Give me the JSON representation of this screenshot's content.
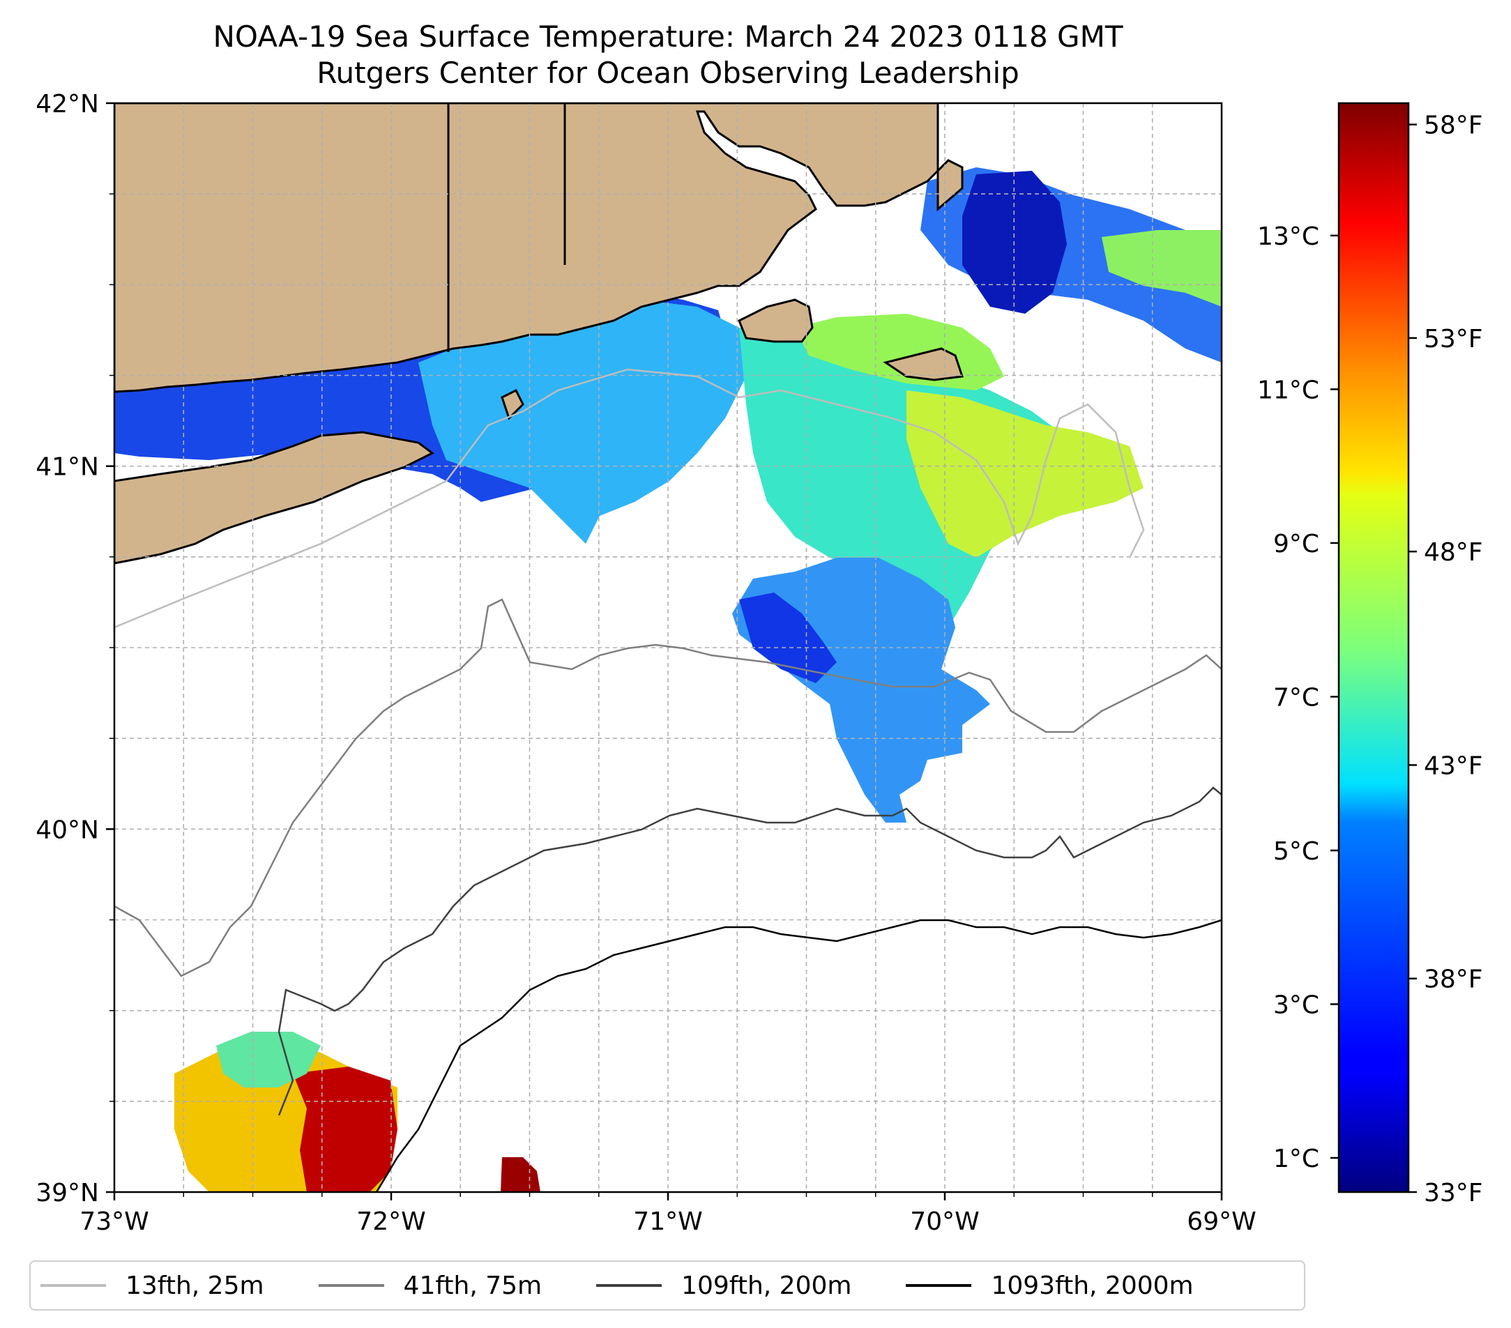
{
  "title": {
    "line1": "NOAA-19 Sea Surface Temperature: March 24 2023 0118 GMT",
    "line2": "Rutgers Center for Ocean Observing Leadership"
  },
  "map": {
    "lon_range": [
      -73,
      -69
    ],
    "lat_range": [
      39,
      42
    ],
    "x_ticks": [
      "73°W",
      "72°W",
      "71°W",
      "70°W",
      "69°W"
    ],
    "y_ticks": [
      "39°N",
      "40°N",
      "41°N",
      "42°N"
    ],
    "land_color": "#d2b48c",
    "no_data_color": "#ffffff",
    "gridlines": "on, dashed gray every 0.25°"
  },
  "colorbar": {
    "colormap": "jet",
    "celsius_ticks": [
      "1°C",
      "3°C",
      "5°C",
      "7°C",
      "9°C",
      "11°C",
      "13°C"
    ],
    "fahrenheit_ticks": [
      "33°F",
      "38°F",
      "43°F",
      "48°F",
      "53°F",
      "58°F"
    ],
    "range_f": [
      33,
      58.5
    ]
  },
  "legend": {
    "items": [
      {
        "label": "13fth, 25m",
        "color": "#bdbdbd"
      },
      {
        "label": "41fth, 75m",
        "color": "#7f7f7f"
      },
      {
        "label": "109fth, 200m",
        "color": "#404040"
      },
      {
        "label": "1093fth, 2000m",
        "color": "#000000"
      }
    ]
  }
}
